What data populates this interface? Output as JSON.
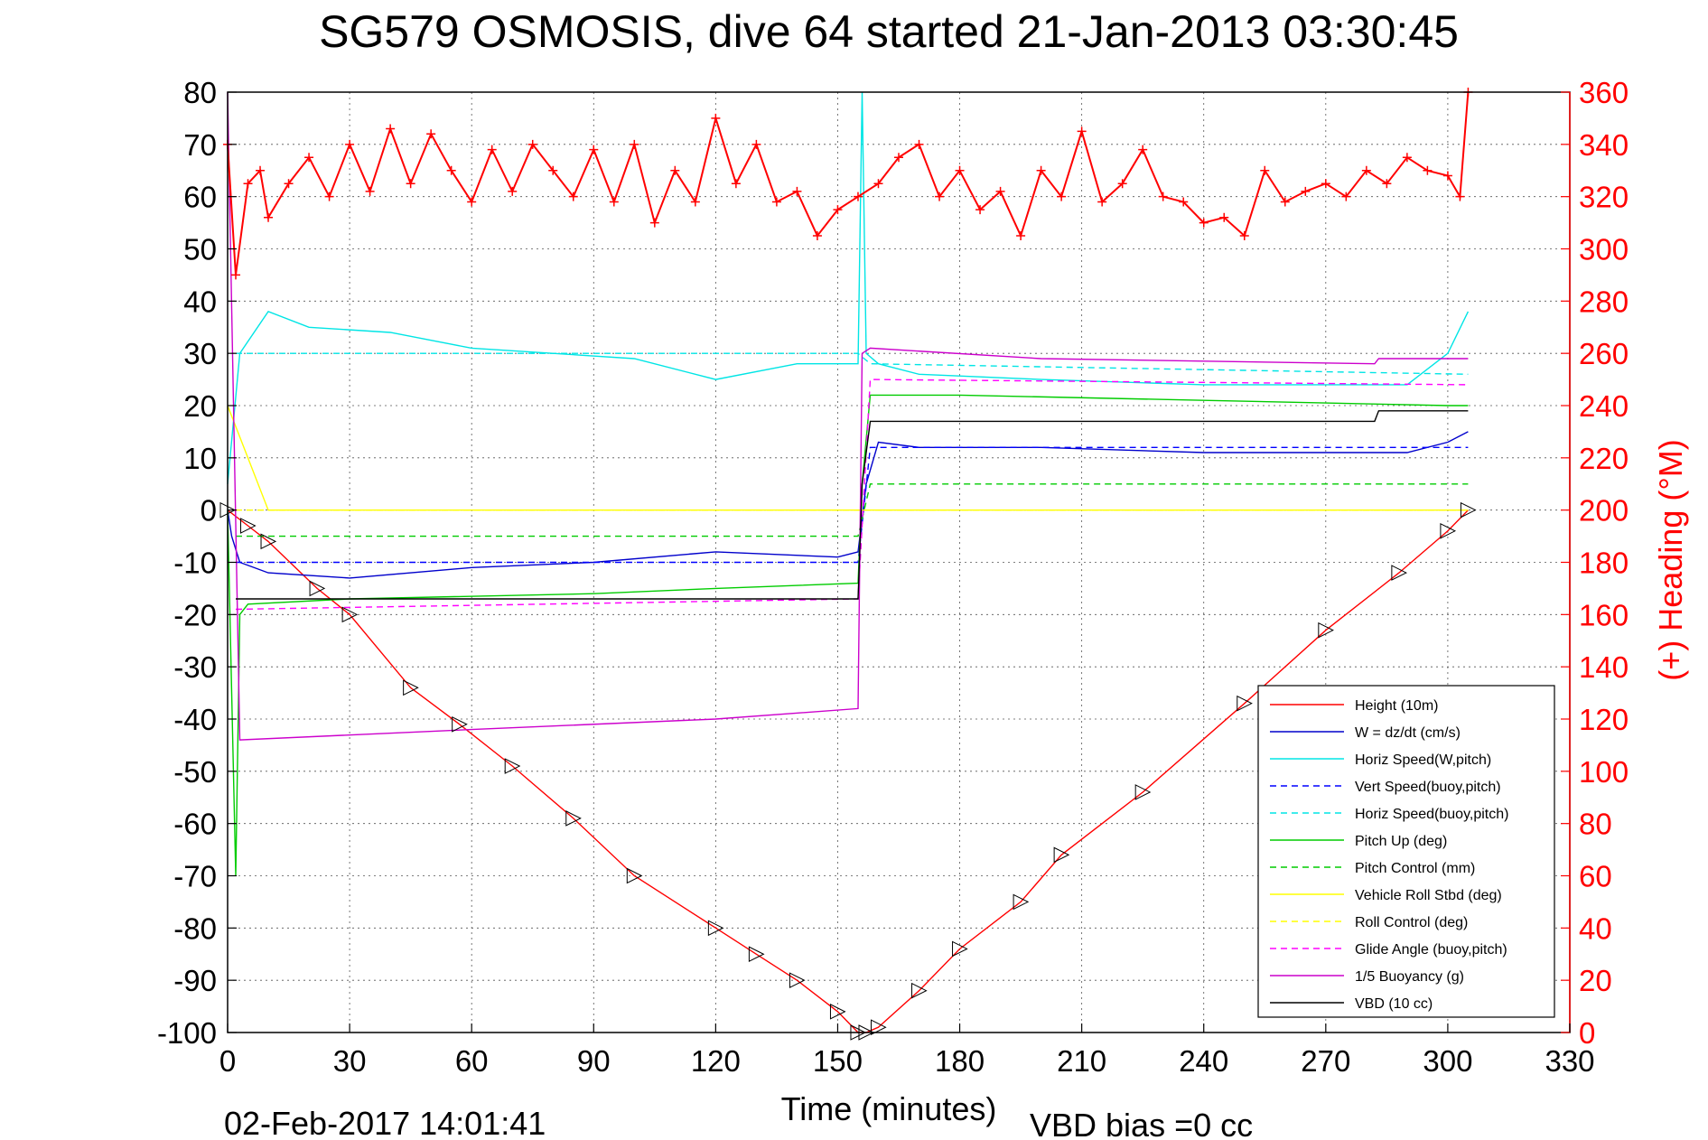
{
  "chart_data": {
    "type": "line",
    "title": "SG579 OSMOSIS, dive 64 started 21-Jan-2013 03:30:45",
    "xlabel": "Time (minutes)",
    "ylabel": "",
    "y2label": "(+) Heading (°M)",
    "xlim": [
      0,
      330
    ],
    "ylim": [
      -100,
      80
    ],
    "y2lim": [
      0,
      360
    ],
    "xticks": [
      "0",
      "30",
      "60",
      "90",
      "120",
      "150",
      "180",
      "210",
      "240",
      "270",
      "300",
      "330"
    ],
    "yticks": [
      "80",
      "70",
      "60",
      "50",
      "40",
      "30",
      "20",
      "10",
      "0",
      "-10",
      "-20",
      "-30",
      "-40",
      "-50",
      "-60",
      "-70",
      "-80",
      "-90",
      "-100"
    ],
    "y2ticks": [
      "360",
      "340",
      "320",
      "300",
      "280",
      "260",
      "240",
      "220",
      "200",
      "180",
      "160",
      "140",
      "120",
      "100",
      "80",
      "60",
      "40",
      "20",
      "0"
    ],
    "grid": true,
    "legend_position": "bottom-right",
    "footer_date": "02-Feb-2017 14:01:41",
    "footer_note": "VBD bias =0 cc",
    "colors": {
      "heading": "#ff0000",
      "height": "#ff0000",
      "w": "#0000cc",
      "horiz_speed": "#00e5e5",
      "pitch": "#00cc00",
      "roll": "#ffff00",
      "glide": "#ff00ff",
      "buoyancy": "#cc00cc",
      "vbd": "#000000"
    },
    "series": [
      {
        "name": "Height (10m)",
        "color": "#ff0000",
        "dash": false,
        "x": [
          0,
          5,
          10,
          22,
          30,
          45,
          57,
          70,
          85,
          100,
          120,
          130,
          140,
          150,
          155,
          157,
          160,
          170,
          180,
          195,
          205,
          225,
          250,
          270,
          288,
          300,
          305
        ],
        "y": [
          0,
          -3,
          -6,
          -15,
          -20,
          -34,
          -41,
          -49,
          -59,
          -70,
          -80,
          -85,
          -90,
          -96,
          -100,
          -100,
          -99,
          -92,
          -84,
          -75,
          -66,
          -54,
          -37,
          -23,
          -12,
          -4,
          0
        ]
      },
      {
        "name": "W = dz/dt (cm/s)",
        "color": "#0000cc",
        "dash": false,
        "x": [
          0,
          1,
          3,
          10,
          30,
          60,
          90,
          120,
          150,
          155,
          157,
          160,
          170,
          200,
          240,
          270,
          290,
          300,
          305
        ],
        "y": [
          0,
          -5,
          -10,
          -12,
          -13,
          -11,
          -10,
          -8,
          -9,
          -8,
          5,
          13,
          12,
          12,
          11,
          11,
          11,
          13,
          15
        ]
      },
      {
        "name": "Horiz Speed(W,pitch)",
        "color": "#00e5e5",
        "dash": false,
        "x": [
          0,
          3,
          10,
          20,
          40,
          60,
          80,
          100,
          120,
          140,
          150,
          155,
          156,
          157,
          160,
          170,
          200,
          240,
          270,
          290,
          300,
          305
        ],
        "y": [
          5,
          30,
          38,
          35,
          34,
          31,
          30,
          29,
          25,
          28,
          28,
          28,
          80,
          30,
          28,
          26,
          25,
          24,
          24,
          24,
          30,
          38
        ]
      },
      {
        "name": "Vert Speed(buoy,pitch)",
        "color": "#0000ff",
        "dash": true,
        "x": [
          2,
          155,
          158,
          305
        ],
        "y": [
          -10,
          -10,
          12,
          12
        ]
      },
      {
        "name": "Horiz Speed(buoy,pitch)",
        "color": "#00e5e5",
        "dash": true,
        "x": [
          2,
          155,
          158,
          305
        ],
        "y": [
          30,
          30,
          28,
          26
        ]
      },
      {
        "name": "Pitch Up (deg)",
        "color": "#00cc00",
        "dash": false,
        "x": [
          0,
          2,
          3,
          5,
          30,
          90,
          120,
          155,
          156,
          158,
          180,
          240,
          300,
          305
        ],
        "y": [
          0,
          -70,
          -20,
          -18,
          -17,
          -16,
          -15,
          -14,
          5,
          22,
          22,
          21,
          20,
          20
        ]
      },
      {
        "name": "Pitch Control (mm)",
        "color": "#00cc00",
        "dash": true,
        "x": [
          2,
          155,
          158,
          305
        ],
        "y": [
          -5,
          -5,
          5,
          5
        ]
      },
      {
        "name": "Vehicle Roll Stbd (deg)",
        "color": "#ffff00",
        "dash": false,
        "x": [
          0,
          10,
          20,
          30,
          40,
          50,
          60,
          70,
          80,
          90,
          100,
          110,
          120,
          130,
          140,
          150,
          155,
          160,
          170,
          180,
          190,
          200,
          210,
          220,
          230,
          240,
          250,
          260,
          270,
          280,
          290,
          300,
          305
        ],
        "y": [
          20,
          0,
          0,
          0,
          0,
          0,
          0,
          0,
          0,
          0,
          0,
          0,
          0,
          0,
          0,
          0,
          0,
          0,
          0,
          0,
          0,
          0,
          0,
          0,
          0,
          0,
          0,
          0,
          0,
          0,
          0,
          0,
          0
        ]
      },
      {
        "name": "Roll Control (deg)",
        "color": "#ffff00",
        "dash": true,
        "x": [
          2,
          305
        ],
        "y": [
          0,
          0
        ]
      },
      {
        "name": "Glide Angle (buoy,pitch)",
        "color": "#ff00ff",
        "dash": true,
        "x": [
          2,
          155,
          158,
          305
        ],
        "y": [
          -19,
          -17,
          25,
          24
        ]
      },
      {
        "name": "1/5 Buoyancy (g)",
        "color": "#cc00cc",
        "dash": false,
        "x": [
          0,
          3,
          60,
          120,
          155,
          156,
          158,
          200,
          282,
          283,
          305
        ],
        "y": [
          80,
          -44,
          -42,
          -40,
          -38,
          30,
          31,
          29,
          28,
          29,
          29
        ]
      },
      {
        "name": "VBD (10 cc)",
        "color": "#000000",
        "dash": false,
        "x": [
          2,
          155,
          156,
          158,
          282,
          283,
          305
        ],
        "y": [
          -17,
          -17,
          5,
          17,
          17,
          19,
          19
        ]
      }
    ],
    "heading_series": {
      "name": "(+) Heading",
      "color": "#ff0000",
      "x": [
        0,
        2,
        5,
        8,
        10,
        15,
        20,
        25,
        30,
        35,
        40,
        45,
        50,
        55,
        60,
        65,
        70,
        75,
        80,
        85,
        90,
        95,
        100,
        105,
        110,
        115,
        120,
        125,
        130,
        135,
        140,
        145,
        150,
        155,
        160,
        165,
        170,
        175,
        180,
        185,
        190,
        195,
        200,
        205,
        210,
        215,
        220,
        225,
        230,
        235,
        240,
        245,
        250,
        255,
        260,
        265,
        270,
        275,
        280,
        285,
        290,
        295,
        300,
        303,
        305
      ],
      "y": [
        340,
        290,
        325,
        330,
        312,
        325,
        335,
        320,
        340,
        322,
        346,
        325,
        344,
        330,
        318,
        338,
        322,
        340,
        330,
        320,
        338,
        318,
        340,
        310,
        330,
        318,
        350,
        325,
        340,
        318,
        322,
        305,
        315,
        320,
        325,
        335,
        340,
        320,
        330,
        315,
        322,
        305,
        330,
        320,
        345,
        318,
        325,
        338,
        320,
        318,
        310,
        312,
        305,
        330,
        318,
        322,
        325,
        320,
        330,
        325,
        335,
        330,
        328,
        320,
        360
      ]
    }
  }
}
